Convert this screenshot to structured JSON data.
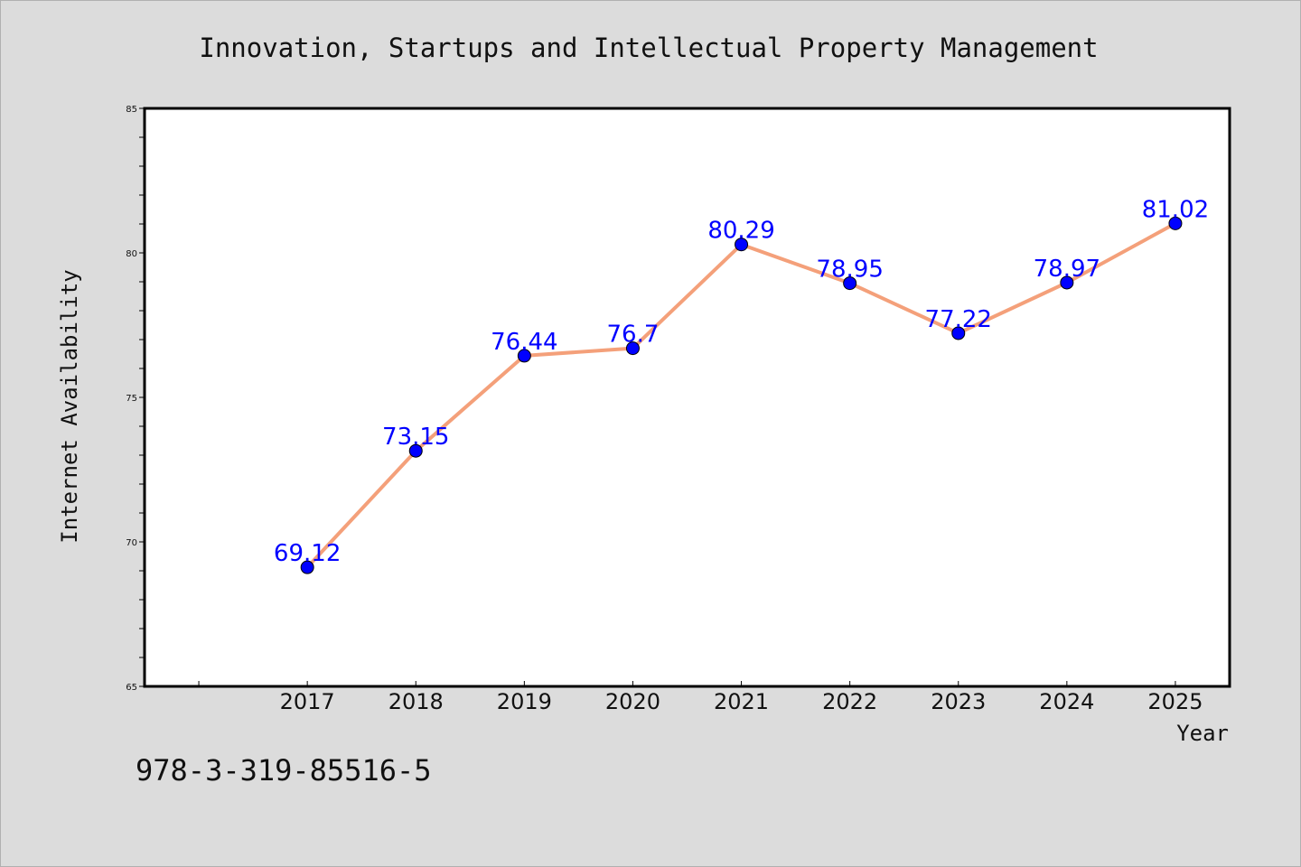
{
  "chart_data": {
    "type": "line",
    "title": "Innovation, Startups and Intellectual Property Management",
    "xlabel": "Year",
    "ylabel": "Internet Availability",
    "categories": [
      "2017",
      "2018",
      "2019",
      "2020",
      "2021",
      "2022",
      "2023",
      "2024",
      "2025"
    ],
    "series": [
      {
        "values": [
          69.12,
          73.15,
          76.44,
          76.7,
          80.29,
          78.95,
          77.22,
          78.97,
          81.02
        ],
        "data_labels": [
          "69.12",
          "73.15",
          "76.44",
          "76.7",
          "80.29",
          "78.95",
          "77.22",
          "78.97",
          "81.02"
        ],
        "line_color": "#f4a07a",
        "marker_color": "#0000ff",
        "label_color": "#0000ff"
      }
    ],
    "ylim": [
      65,
      85
    ],
    "yticks": [
      65,
      70,
      75,
      80,
      85
    ],
    "ytick_labels": [
      "65",
      "70",
      "75",
      "80",
      "85"
    ],
    "y_minor_step": 1,
    "xlim_years": [
      2015.5,
      2025.5
    ],
    "grid": false,
    "legend": "none"
  },
  "footer_text": "978-3-319-85516-5",
  "colors": {
    "background": "#dcdcdc",
    "plot_background": "#ffffff",
    "axis": "#000000"
  }
}
